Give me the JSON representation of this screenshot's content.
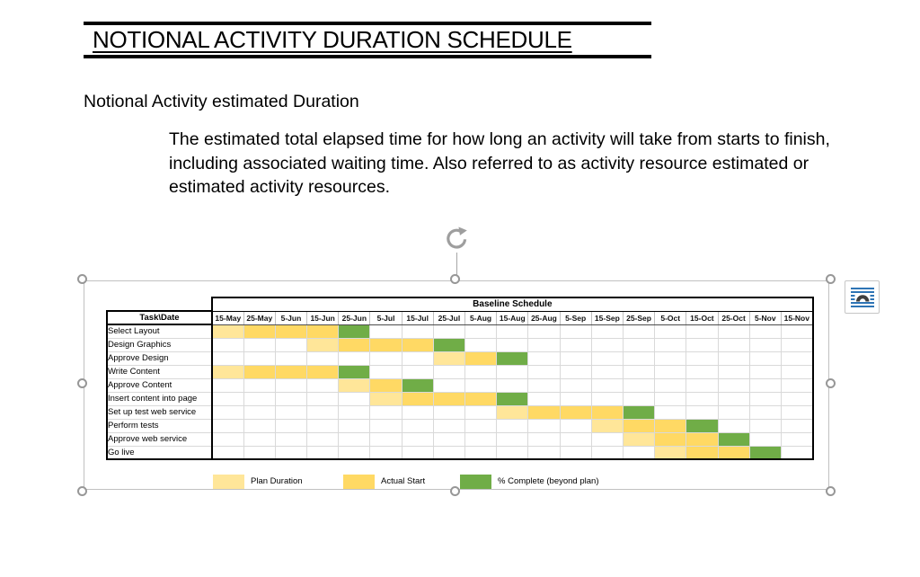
{
  "document": {
    "title": "NOTIONAL ACTIVITY DURATION SCHEDULE",
    "heading": "Notional Activity estimated Duration",
    "paragraph": "The estimated total elapsed time for how long an activity will take from starts to finish, including associated waiting time. Also referred to as activity resource estimated or estimated activity resources."
  },
  "chart_data": {
    "type": "table",
    "title": "Baseline Schedule",
    "corner_label": "Task\\Date",
    "dates": [
      "15-May",
      "25-May",
      "5-Jun",
      "15-Jun",
      "25-Jun",
      "5-Jul",
      "15-Jul",
      "25-Jul",
      "5-Aug",
      "15-Aug",
      "25-Aug",
      "5-Sep",
      "15-Sep",
      "25-Sep",
      "5-Oct",
      "15-Oct",
      "25-Oct",
      "5-Nov",
      "15-Nov"
    ],
    "tasks": [
      {
        "name": "Select Layout",
        "plan": [
          1
        ],
        "actual": [
          2,
          3,
          4
        ],
        "complete": [
          5
        ]
      },
      {
        "name": "Design Graphics",
        "plan": [
          4
        ],
        "actual": [
          5,
          6,
          7
        ],
        "complete": [
          8
        ]
      },
      {
        "name": "Approve Design",
        "plan": [
          8
        ],
        "actual": [
          9
        ],
        "complete": [
          10
        ]
      },
      {
        "name": "Write Content",
        "plan": [
          1
        ],
        "actual": [
          2,
          3,
          4
        ],
        "complete": [
          5
        ]
      },
      {
        "name": "Approve Content",
        "plan": [
          5
        ],
        "actual": [
          6
        ],
        "complete": [
          7
        ]
      },
      {
        "name": "Insert content into page",
        "plan": [
          6
        ],
        "actual": [
          7,
          8,
          9
        ],
        "complete": [
          10
        ]
      },
      {
        "name": "Set up test web service",
        "plan": [
          10
        ],
        "actual": [
          11,
          12,
          13
        ],
        "complete": [
          14
        ]
      },
      {
        "name": "Perform tests",
        "plan": [
          13
        ],
        "actual": [
          14,
          15
        ],
        "complete": [
          16
        ]
      },
      {
        "name": "Approve web service",
        "plan": [
          14
        ],
        "actual": [
          15,
          16
        ],
        "complete": [
          17
        ]
      },
      {
        "name": "Go live",
        "plan": [
          15
        ],
        "actual": [
          16,
          17
        ],
        "complete": [
          18
        ]
      }
    ],
    "colors": {
      "plan": "#FFE699",
      "actual": "#FFD964",
      "complete": "#70AD47"
    },
    "legend": [
      {
        "label": "Plan Duration",
        "color": "#FFE699"
      },
      {
        "label": "Actual Start",
        "color": "#FFD964"
      },
      {
        "label": "% Complete (beyond plan)",
        "color": "#70AD47"
      }
    ],
    "grid_color": "#D9D9D9"
  },
  "ui": {
    "selection_border_color": "#C1C1C1",
    "handle_color": "#979797",
    "layout_icon_line_color": "#2E74B5",
    "layout_icon_arc_color": "#3F3F3F"
  }
}
